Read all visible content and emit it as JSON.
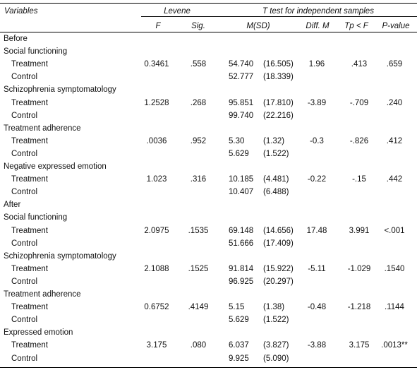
{
  "header": {
    "variables": "Variables",
    "levene": "Levene",
    "ttest": "T test for independent samples",
    "cols": {
      "F": "F",
      "sig": "Sig.",
      "msd": "M(SD)",
      "diff": "Diff. M",
      "tp": "Tp < F",
      "p": "P-value"
    }
  },
  "rows": [
    {
      "type": "section",
      "label": "Before"
    },
    {
      "type": "variable",
      "label": "Social functioning"
    },
    {
      "type": "data",
      "label": "Treatment",
      "F": "0.3461",
      "sig": ".558",
      "m": "54.740",
      "sd": "(16.505)",
      "diff": "1.96",
      "tp": ".413",
      "p": ".659"
    },
    {
      "type": "data",
      "label": "Control",
      "m": "52.777",
      "sd": "(18.339)"
    },
    {
      "type": "variable",
      "label": "Schizophrenia symptomatology"
    },
    {
      "type": "data",
      "label": "Treatment",
      "F": "1.2528",
      "sig": ".268",
      "m": "95.851",
      "sd": "(17.810)",
      "diff": "-3.89",
      "tp": "-.709",
      "p": ".240"
    },
    {
      "type": "data",
      "label": "Control",
      "m": "99.740",
      "sd": "(22.216)"
    },
    {
      "type": "variable",
      "label": "Treatment adherence"
    },
    {
      "type": "data",
      "label": "Treatment",
      "F": ".0036",
      "sig": ".952",
      "m": "5.30",
      "sd": "(1.32)",
      "diff": "-0.3",
      "tp": "-.826",
      "p": ".412"
    },
    {
      "type": "data",
      "label": "Control",
      "m": "5.629",
      "sd": "(1.522)"
    },
    {
      "type": "variable",
      "label": "Negative expressed emotion"
    },
    {
      "type": "data",
      "label": "Treatment",
      "F": "1.023",
      "sig": ".316",
      "m": "10.185",
      "sd": "(4.481)",
      "diff": "-0.22",
      "tp": "-.15",
      "p": ".442"
    },
    {
      "type": "data",
      "label": "Control",
      "m": "10.407",
      "sd": "(6.488)"
    },
    {
      "type": "section",
      "label": "After"
    },
    {
      "type": "variable",
      "label": "Social functioning"
    },
    {
      "type": "data",
      "label": "Treatment",
      "F": "2.0975",
      "sig": ".1535",
      "m": "69.148",
      "sd": "(14.656)",
      "diff": "17.48",
      "tp": "3.991",
      "p": "<.001"
    },
    {
      "type": "data",
      "label": "Control",
      "m": "51.666",
      "sd": "(17.409)"
    },
    {
      "type": "variable",
      "label": "Schizophrenia symptomatology"
    },
    {
      "type": "data",
      "label": "Treatment",
      "F": "2.1088",
      "sig": ".1525",
      "m": "91.814",
      "sd": "(15.922)",
      "diff": "-5.11",
      "tp": "-1.029",
      "p": ".1540"
    },
    {
      "type": "data",
      "label": "Control",
      "m": "96.925",
      "sd": "(20.297)"
    },
    {
      "type": "variable",
      "label": "Treatment adherence"
    },
    {
      "type": "data",
      "label": "Treatment",
      "F": "0.6752",
      "sig": ".4149",
      "m": "5.15",
      "sd": "(1.38)",
      "diff": "-0.48",
      "tp": "-1.218",
      "p": ".1144"
    },
    {
      "type": "data",
      "label": "Control",
      "m": "5.629",
      "sd": "(1.522)"
    },
    {
      "type": "variable",
      "label": "Expressed emotion"
    },
    {
      "type": "data",
      "label": "Treatment",
      "F": "3.175",
      "sig": ".080",
      "m": "6.037",
      "sd": "(3.827)",
      "diff": "-3.88",
      "tp": "3.175",
      "p": ".0013**"
    },
    {
      "type": "data",
      "label": "Control",
      "m": "9.925",
      "sd": "(5.090)"
    }
  ]
}
